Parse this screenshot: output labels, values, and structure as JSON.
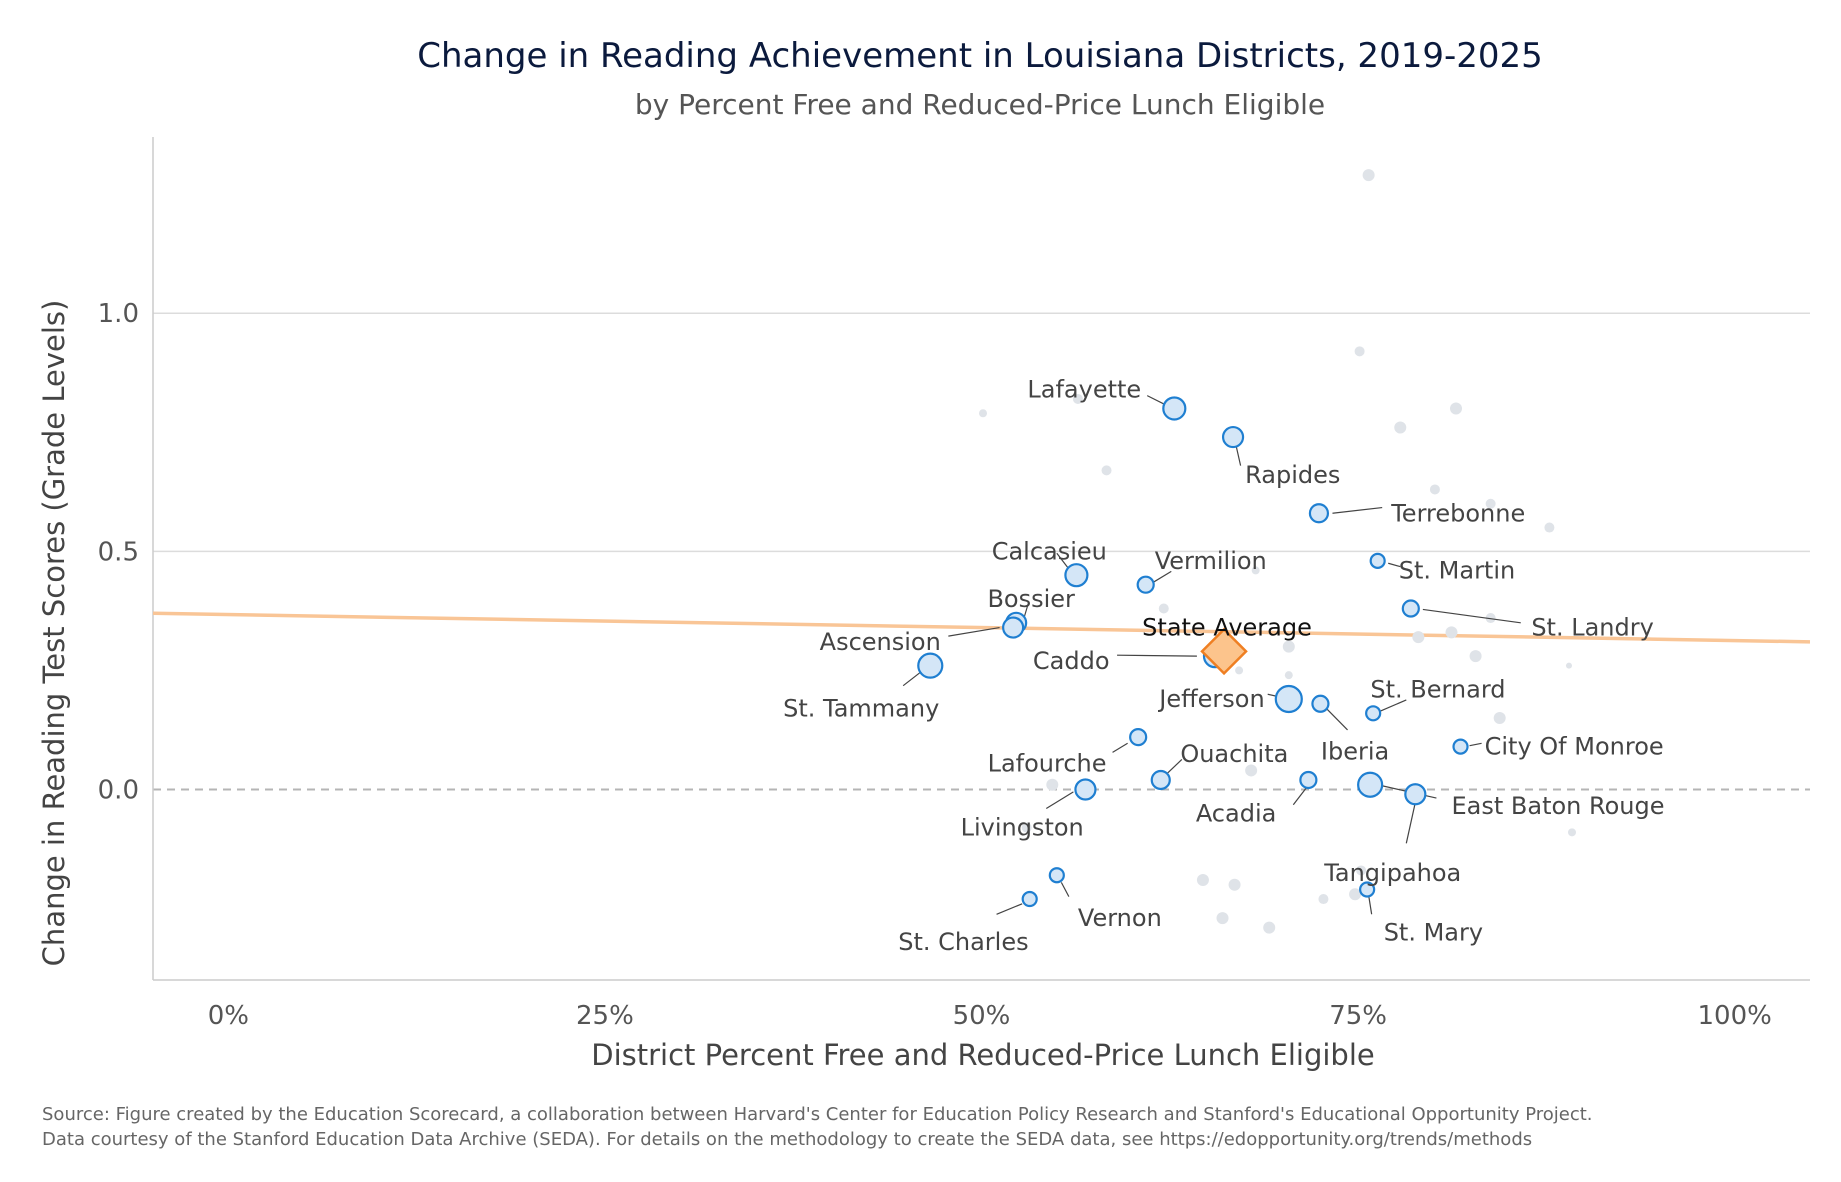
{
  "chart_data": {
    "type": "scatter",
    "title": "Change in Reading Achievement in Louisiana Districts, 2019-2025",
    "subtitle": "by Percent Free and Reduced-Price Lunch Eligible",
    "xlabel": "District Percent Free and Reduced-Price Lunch Eligible",
    "ylabel": "Change in Reading Test Scores (Grade Levels)",
    "xlim": [
      -0.05,
      1.05
    ],
    "ylim": [
      -0.4,
      1.37
    ],
    "x_ticks": [
      {
        "value": 0,
        "label": "0%"
      },
      {
        "value": 0.25,
        "label": "25%"
      },
      {
        "value": 0.5,
        "label": "50%"
      },
      {
        "value": 0.75,
        "label": "75%"
      },
      {
        "value": 1,
        "label": "100%"
      }
    ],
    "y_ticks": [
      {
        "value": 0,
        "label": "0.0"
      },
      {
        "value": 0.5,
        "label": "0.5"
      },
      {
        "value": 1,
        "label": "1.0"
      }
    ],
    "grid": "horizontal",
    "trend_line": {
      "x": [
        -0.05,
        1.05
      ],
      "y": [
        0.37,
        0.31
      ]
    },
    "reference_line_y": 0,
    "colors": {
      "highlight_fill": "#d4e6f7",
      "highlight_stroke": "#1f7fd1",
      "other_fill": "#dfe3e8",
      "state_fill": "#fcc48c",
      "state_stroke": "#ef7f22",
      "trend": "#f9c596",
      "grid": "#dcdcdc",
      "zero_line": "#b5b5b5"
    },
    "state_average": {
      "name": "State Average",
      "x": 0.661,
      "y": 0.29
    },
    "highlighted_districts": [
      {
        "name": "Lafayette",
        "x": 0.628,
        "y": 0.8,
        "r": 11
      },
      {
        "name": "Rapides",
        "x": 0.667,
        "y": 0.74,
        "r": 10
      },
      {
        "name": "Terrebonne",
        "x": 0.724,
        "y": 0.58,
        "r": 9
      },
      {
        "name": "Calcasieu",
        "x": 0.563,
        "y": 0.45,
        "r": 11
      },
      {
        "name": "Vermilion",
        "x": 0.609,
        "y": 0.43,
        "r": 8
      },
      {
        "name": "St. Martin",
        "x": 0.763,
        "y": 0.48,
        "r": 7
      },
      {
        "name": "Bossier",
        "x": 0.523,
        "y": 0.35,
        "r": 10
      },
      {
        "name": "St. Landry",
        "x": 0.785,
        "y": 0.38,
        "r": 8
      },
      {
        "name": "Ascension",
        "x": 0.521,
        "y": 0.34,
        "r": 10
      },
      {
        "name": "Caddo",
        "x": 0.655,
        "y": 0.28,
        "r": 11
      },
      {
        "name": "St. Tammany",
        "x": 0.466,
        "y": 0.26,
        "r": 12
      },
      {
        "name": "Jefferson",
        "x": 0.704,
        "y": 0.19,
        "r": 13
      },
      {
        "name": "Iberia",
        "x": 0.725,
        "y": 0.18,
        "r": 8
      },
      {
        "name": "St. Bernard",
        "x": 0.76,
        "y": 0.16,
        "r": 7
      },
      {
        "name": "City Of Monroe",
        "x": 0.818,
        "y": 0.09,
        "r": 7
      },
      {
        "name": "Lafourche",
        "x": 0.604,
        "y": 0.11,
        "r": 8
      },
      {
        "name": "Ouachita",
        "x": 0.619,
        "y": 0.02,
        "r": 9
      },
      {
        "name": "Livingston",
        "x": 0.569,
        "y": 0.0,
        "r": 10
      },
      {
        "name": "Acadia",
        "x": 0.717,
        "y": 0.02,
        "r": 8
      },
      {
        "name": "East Baton Rouge",
        "x": 0.758,
        "y": 0.01,
        "r": 12
      },
      {
        "name": "Tangipahoa",
        "x": 0.788,
        "y": -0.01,
        "r": 10
      },
      {
        "name": "Vernon",
        "x": 0.55,
        "y": -0.18,
        "r": 7
      },
      {
        "name": "St. Charles",
        "x": 0.532,
        "y": -0.23,
        "r": 7
      },
      {
        "name": "St. Mary",
        "x": 0.756,
        "y": -0.21,
        "r": 7
      }
    ],
    "other_districts": [
      {
        "x": 0.757,
        "y": 1.29,
        "r": 6
      },
      {
        "x": 0.751,
        "y": 0.92,
        "r": 5
      },
      {
        "x": 0.564,
        "y": 0.82,
        "r": 5
      },
      {
        "x": 0.501,
        "y": 0.79,
        "r": 4
      },
      {
        "x": 0.815,
        "y": 0.8,
        "r": 6
      },
      {
        "x": 0.778,
        "y": 0.76,
        "r": 6
      },
      {
        "x": 0.583,
        "y": 0.67,
        "r": 5
      },
      {
        "x": 0.801,
        "y": 0.63,
        "r": 5
      },
      {
        "x": 0.838,
        "y": 0.6,
        "r": 5
      },
      {
        "x": 0.877,
        "y": 0.55,
        "r": 5
      },
      {
        "x": 0.682,
        "y": 0.46,
        "r": 4
      },
      {
        "x": 0.621,
        "y": 0.38,
        "r": 5
      },
      {
        "x": 0.838,
        "y": 0.36,
        "r": 5
      },
      {
        "x": 0.812,
        "y": 0.33,
        "r": 6
      },
      {
        "x": 0.79,
        "y": 0.32,
        "r": 6
      },
      {
        "x": 0.704,
        "y": 0.3,
        "r": 6
      },
      {
        "x": 0.828,
        "y": 0.28,
        "r": 6
      },
      {
        "x": 0.89,
        "y": 0.26,
        "r": 3
      },
      {
        "x": 0.671,
        "y": 0.25,
        "r": 4
      },
      {
        "x": 0.704,
        "y": 0.24,
        "r": 4
      },
      {
        "x": 0.844,
        "y": 0.15,
        "r": 6
      },
      {
        "x": 0.679,
        "y": 0.04,
        "r": 6
      },
      {
        "x": 0.547,
        "y": 0.01,
        "r": 6
      },
      {
        "x": 0.53,
        "y": -0.08,
        "r": 5
      },
      {
        "x": 0.892,
        "y": -0.09,
        "r": 4
      },
      {
        "x": 0.647,
        "y": -0.19,
        "r": 6
      },
      {
        "x": 0.668,
        "y": -0.2,
        "r": 6
      },
      {
        "x": 0.752,
        "y": -0.17,
        "r": 5
      },
      {
        "x": 0.748,
        "y": -0.22,
        "r": 6
      },
      {
        "x": 0.727,
        "y": -0.23,
        "r": 5
      },
      {
        "x": 0.66,
        "y": -0.27,
        "r": 6
      },
      {
        "x": 0.691,
        "y": -0.29,
        "r": 6
      }
    ],
    "annotations": [
      {
        "name": "Lafayette",
        "text": "Lafayette",
        "anchor": "end",
        "tx": 0.606,
        "ty": 0.84,
        "from": [
          0.61,
          0.827
        ],
        "to": [
          0.622,
          0.808
        ]
      },
      {
        "name": "Rapides",
        "text": "Rapides",
        "anchor": "start",
        "tx": 0.675,
        "ty": 0.66,
        "from": [
          0.669,
          0.722
        ],
        "to": [
          0.672,
          0.68
        ]
      },
      {
        "name": "Terrebonne",
        "text": "Terrebonne",
        "anchor": "start",
        "tx": 0.772,
        "ty": 0.58,
        "from": [
          0.733,
          0.58
        ],
        "to": [
          0.766,
          0.592
        ]
      },
      {
        "name": "Calcasieu",
        "text": "Calcasieu",
        "anchor": "middle",
        "tx": 0.545,
        "ty": 0.5,
        "from": [
          0.55,
          0.496
        ],
        "to": [
          0.558,
          0.463
        ]
      },
      {
        "name": "Vermilion",
        "text": "Vermilion",
        "anchor": "start",
        "tx": 0.615,
        "ty": 0.48,
        "from": [
          0.614,
          0.435
        ],
        "to": [
          0.626,
          0.458
        ]
      },
      {
        "name": "St. Martin",
        "text": "St. Martin",
        "anchor": "start",
        "tx": 0.777,
        "ty": 0.46,
        "from": [
          0.77,
          0.475
        ],
        "to": [
          0.778,
          0.468
        ]
      },
      {
        "name": "Bossier",
        "text": "Bossier",
        "anchor": "middle",
        "tx": 0.533,
        "ty": 0.4,
        "from": [
          0.528,
          0.358
        ],
        "to": [
          0.531,
          0.39
        ]
      },
      {
        "name": "St. Landry",
        "text": "St. Landry",
        "anchor": "start",
        "tx": 0.865,
        "ty": 0.34,
        "from": [
          0.793,
          0.378
        ],
        "to": [
          0.858,
          0.35
        ]
      },
      {
        "name": "Ascension",
        "text": "Ascension",
        "anchor": "end",
        "tx": 0.473,
        "ty": 0.31,
        "from": [
          0.478,
          0.322
        ],
        "to": [
          0.512,
          0.34
        ]
      },
      {
        "name": "State Average",
        "text": "State Average",
        "anchor": "middle",
        "tx": 0.663,
        "ty": 0.34,
        "from": [
          0.661,
          0.32
        ],
        "to": [
          0.664,
          0.33
        ]
      },
      {
        "name": "Caddo",
        "text": "Caddo",
        "anchor": "end",
        "tx": 0.585,
        "ty": 0.27,
        "from": [
          0.59,
          0.282
        ],
        "to": [
          0.643,
          0.28
        ]
      },
      {
        "name": "St. Tammany",
        "text": "St. Tammany",
        "anchor": "end",
        "tx": 0.472,
        "ty": 0.17,
        "from": [
          0.448,
          0.218
        ],
        "to": [
          0.459,
          0.245
        ]
      },
      {
        "name": "Jefferson",
        "text": "Jefferson",
        "anchor": "end",
        "tx": 0.688,
        "ty": 0.19,
        "from": [
          0.69,
          0.2
        ],
        "to": [
          0.697,
          0.195
        ]
      },
      {
        "name": "Iberia",
        "text": "Iberia",
        "anchor": "middle",
        "tx": 0.748,
        "ty": 0.08,
        "from": [
          0.729,
          0.17
        ],
        "to": [
          0.743,
          0.125
        ]
      },
      {
        "name": "St. Bernard",
        "text": "St. Bernard",
        "anchor": "middle",
        "tx": 0.803,
        "ty": 0.21,
        "from": [
          0.765,
          0.165
        ],
        "to": [
          0.782,
          0.188
        ]
      },
      {
        "name": "City Of Monroe",
        "text": "City Of Monroe",
        "anchor": "start",
        "tx": 0.834,
        "ty": 0.09,
        "from": [
          0.824,
          0.092
        ],
        "to": [
          0.832,
          0.097
        ]
      },
      {
        "name": "Lafourche",
        "text": "Lafourche",
        "anchor": "end",
        "tx": 0.583,
        "ty": 0.055,
        "from": [
          0.587,
          0.078
        ],
        "to": [
          0.597,
          0.097
        ]
      },
      {
        "name": "Ouachita",
        "text": "Ouachita",
        "anchor": "start",
        "tx": 0.632,
        "ty": 0.075,
        "from": [
          0.623,
          0.033
        ],
        "to": [
          0.633,
          0.063
        ]
      },
      {
        "name": "Livingston",
        "text": "Livingston",
        "anchor": "middle",
        "tx": 0.527,
        "ty": -0.08,
        "from": [
          0.543,
          -0.04
        ],
        "to": [
          0.561,
          -0.005
        ]
      },
      {
        "name": "Acadia",
        "text": "Acadia",
        "anchor": "middle",
        "tx": 0.669,
        "ty": -0.05,
        "from": [
          0.707,
          -0.032
        ],
        "to": [
          0.716,
          0.005
        ]
      },
      {
        "name": "East Baton Rouge",
        "text": "East Baton Rouge",
        "anchor": "start",
        "tx": 0.812,
        "ty": -0.035,
        "from": [
          0.763,
          0.01
        ],
        "to": [
          0.802,
          -0.018
        ]
      },
      {
        "name": "Tangipahoa",
        "text": "Tangipahoa",
        "anchor": "middle",
        "tx": 0.773,
        "ty": -0.175,
        "from": [
          0.782,
          -0.113
        ],
        "to": [
          0.788,
          -0.027
        ]
      },
      {
        "name": "Vernon",
        "text": "Vernon",
        "anchor": "start",
        "tx": 0.564,
        "ty": -0.27,
        "from": [
          0.553,
          -0.195
        ],
        "to": [
          0.558,
          -0.225
        ]
      },
      {
        "name": "St. Charles",
        "text": "St. Charles",
        "anchor": "middle",
        "tx": 0.488,
        "ty": -0.32,
        "from": [
          0.51,
          -0.262
        ],
        "to": [
          0.527,
          -0.24
        ]
      },
      {
        "name": "St. Mary",
        "text": "St. Mary",
        "anchor": "start",
        "tx": 0.767,
        "ty": -0.3,
        "from": [
          0.757,
          -0.222
        ],
        "to": [
          0.759,
          -0.262
        ]
      }
    ]
  },
  "footer": {
    "source_line1": "Source: Figure created by the Education Scorecard, a collaboration between Harvard's Center for Education Policy Research and Stanford's Educational Opportunity Project.",
    "source_line2": "Data courtesy of the Stanford Education Data Archive (SEDA). For details on the methodology to create the SEDA data, see https://edopportunity.org/trends/methods"
  }
}
